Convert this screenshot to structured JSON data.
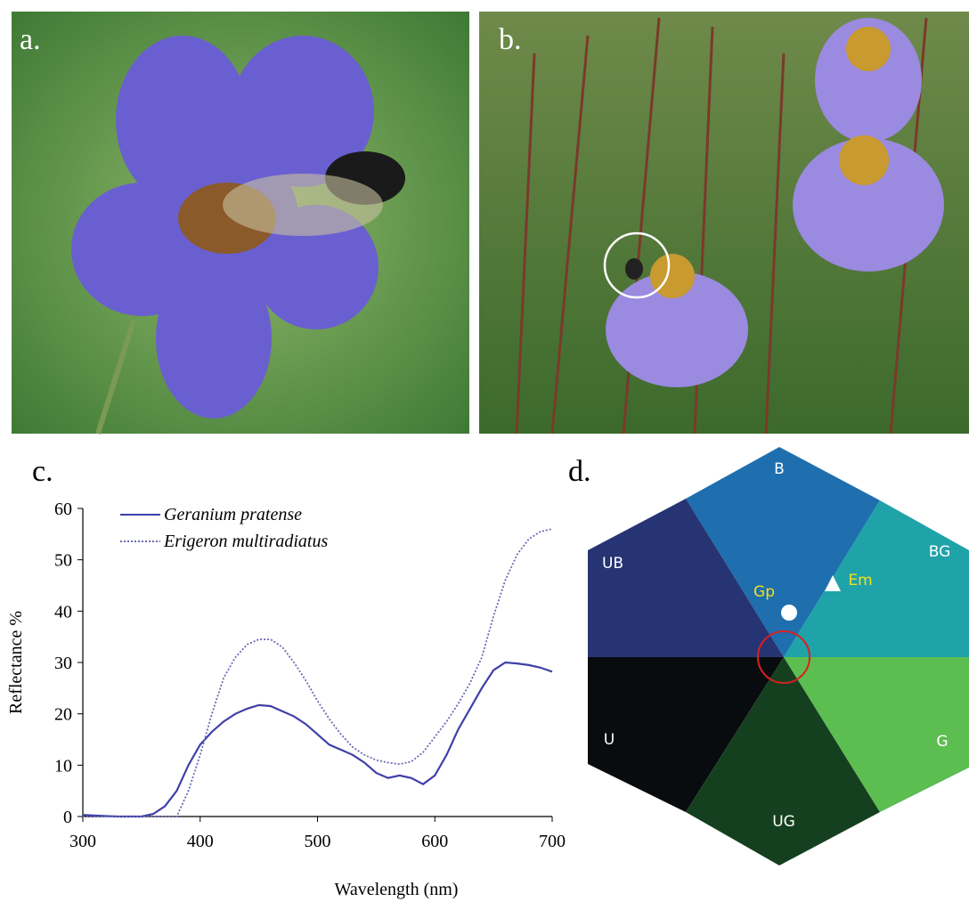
{
  "panels": {
    "a": "a.",
    "b": "b.",
    "c": "c.",
    "d": "d."
  },
  "chart_data": {
    "type": "line",
    "x": [
      300,
      310,
      320,
      330,
      340,
      350,
      360,
      370,
      380,
      390,
      400,
      410,
      420,
      430,
      440,
      450,
      460,
      470,
      480,
      490,
      500,
      510,
      520,
      530,
      540,
      550,
      560,
      570,
      580,
      590,
      600,
      610,
      620,
      630,
      640,
      650,
      660,
      670,
      680,
      690,
      700
    ],
    "series": [
      {
        "name": "Geranium pratense",
        "color": "#3f3fa8",
        "style": "solid",
        "values": [
          0.3,
          0.2,
          0.1,
          0,
          0,
          0,
          0.5,
          2,
          5,
          10,
          14,
          16.5,
          18.5,
          20,
          21,
          21.7,
          21.5,
          20.5,
          19.5,
          18,
          16,
          14,
          13,
          12,
          10.5,
          8.5,
          7.5,
          8,
          7.5,
          6.3,
          8,
          12,
          17,
          21,
          25,
          28.5,
          30,
          29.8,
          29.5,
          29,
          28.2
        ]
      },
      {
        "name": "Erigeron multiradiatus",
        "color": "#6a6ab8",
        "style": "dotted",
        "values": [
          0,
          0,
          0,
          0,
          0,
          0,
          0,
          0,
          0,
          5,
          12,
          20,
          27,
          31,
          33.5,
          34.5,
          34.5,
          33,
          30,
          26.5,
          22.5,
          19,
          16,
          13.5,
          12,
          11,
          10.5,
          10.2,
          10.7,
          12.5,
          15.5,
          18.5,
          22,
          26,
          31,
          39,
          46,
          51,
          54,
          55.5,
          56
        ]
      }
    ],
    "xlim": [
      300,
      700
    ],
    "xticks": [
      300,
      400,
      500,
      600,
      700
    ],
    "ylim": [
      0,
      60
    ],
    "yticks": [
      0,
      10,
      20,
      30,
      40,
      50,
      60
    ],
    "xlabel": "Wavelength (nm)",
    "ylabel": "Reflectance %"
  },
  "hexagon": {
    "sectors": [
      "B",
      "BG",
      "G",
      "UG",
      "U",
      "UB"
    ],
    "points": [
      "Gp",
      "Em"
    ]
  }
}
